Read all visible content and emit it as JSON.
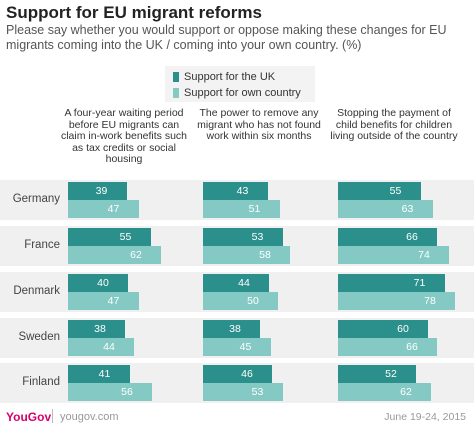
{
  "header": {
    "title": "Support for EU migrant reforms",
    "subtitle": "Please say whether you would support or oppose making these changes for EU migrants coming into the UK / coming into your own country. (%)"
  },
  "legend": {
    "uk_label": "Support for the UK",
    "own_label": "Support for own country"
  },
  "colors": {
    "uk": "#2b8f8b",
    "own": "#84c9c4",
    "band": "#f0f0f0"
  },
  "footer": {
    "logo": "YouGov",
    "url": "yougov.com",
    "date": "June 19-24, 2015"
  },
  "chart_data": {
    "type": "bar",
    "orientation": "horizontal",
    "categories": [
      "Germany",
      "France",
      "Denmark",
      "Sweden",
      "Finland"
    ],
    "panels": [
      {
        "title": "A four-year waiting period before EU migrants can claim in-work benefits such as tax credits or social housing",
        "series": [
          {
            "name": "Support for the UK",
            "values": [
              39,
              55,
              40,
              38,
              41
            ]
          },
          {
            "name": "Support for own country",
            "values": [
              47,
              62,
              47,
              44,
              56
            ]
          }
        ]
      },
      {
        "title": "The power to remove any migrant who has not found work within six months",
        "series": [
          {
            "name": "Support for the UK",
            "values": [
              43,
              53,
              44,
              38,
              46
            ]
          },
          {
            "name": "Support for own country",
            "values": [
              51,
              58,
              50,
              45,
              53
            ]
          }
        ]
      },
      {
        "title": "Stopping the payment of child benefits for children living outside of the country",
        "series": [
          {
            "name": "Support for the UK",
            "values": [
              55,
              66,
              71,
              60,
              52
            ]
          },
          {
            "name": "Support for own country",
            "values": [
              63,
              74,
              78,
              66,
              62
            ]
          }
        ]
      }
    ],
    "xlim": [
      0,
      100
    ]
  }
}
